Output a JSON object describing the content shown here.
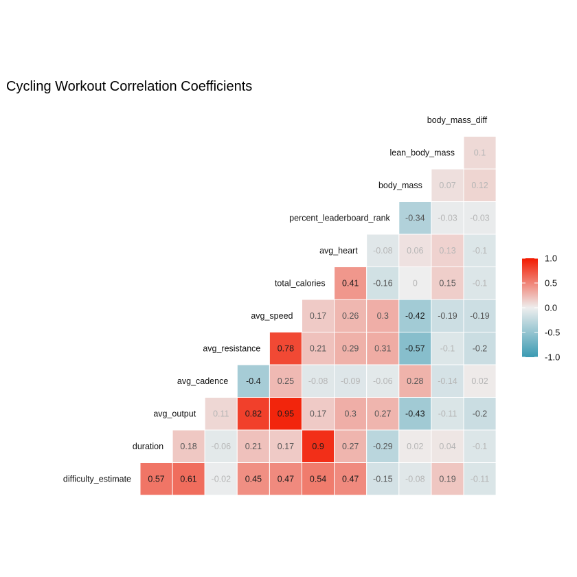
{
  "chart_data": {
    "type": "heatmap",
    "title": "Cycling Workout Correlation Coefficients",
    "variables": [
      "difficulty_estimate",
      "duration",
      "avg_output",
      "avg_cadence",
      "avg_resistance",
      "avg_speed",
      "total_calories",
      "avg_heart",
      "percent_leaderboard_rank",
      "body_mass",
      "lean_body_mass",
      "body_mass_diff"
    ],
    "rows": [
      {
        "label": "difficulty_estimate",
        "values": [
          0.57,
          0.61,
          -0.02,
          0.45,
          0.47,
          0.54,
          0.47,
          -0.15,
          -0.08,
          0.19,
          -0.11
        ]
      },
      {
        "label": "duration",
        "values": [
          0.18,
          -0.06,
          0.21,
          0.17,
          0.9,
          0.27,
          -0.29,
          0.02,
          0.04,
          -0.1
        ]
      },
      {
        "label": "avg_output",
        "values": [
          0.11,
          0.82,
          0.95,
          0.17,
          0.3,
          0.27,
          -0.43,
          -0.11,
          -0.2
        ]
      },
      {
        "label": "avg_cadence",
        "values": [
          -0.4,
          0.25,
          -0.08,
          -0.09,
          -0.06,
          0.28,
          -0.14,
          0.02
        ]
      },
      {
        "label": "avg_resistance",
        "values": [
          0.78,
          0.21,
          0.29,
          0.31,
          -0.57,
          -0.1,
          -0.2
        ]
      },
      {
        "label": "avg_speed",
        "values": [
          0.17,
          0.26,
          0.3,
          -0.42,
          -0.19,
          -0.19
        ]
      },
      {
        "label": "total_calories",
        "values": [
          0.41,
          -0.16,
          0,
          0.15,
          -0.1
        ]
      },
      {
        "label": "avg_heart",
        "values": [
          -0.08,
          0.06,
          0.13,
          -0.1
        ]
      },
      {
        "label": "percent_leaderboard_rank",
        "values": [
          -0.34,
          -0.03,
          -0.03
        ]
      },
      {
        "label": "body_mass",
        "values": [
          0.07,
          0.12
        ]
      },
      {
        "label": "lean_body_mass",
        "values": [
          0.1
        ]
      },
      {
        "label": "body_mass_diff",
        "values": []
      }
    ],
    "color_scale": {
      "low": "#3A9AB2",
      "mid": "#EEEEEE",
      "high": "#F21A00",
      "range": [
        -1,
        1
      ],
      "ticks": [
        1.0,
        0.5,
        0.0,
        -0.5,
        -1.0
      ],
      "tick_labels": [
        "1.0",
        "0.5",
        "0.0",
        "-0.5",
        "-1.0"
      ]
    },
    "legend_position": "right",
    "grid": false
  }
}
